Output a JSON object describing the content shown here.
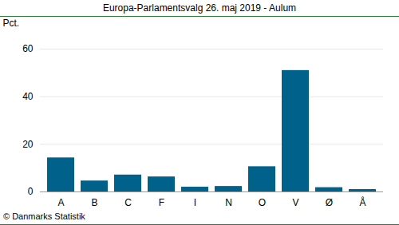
{
  "chart_data": {
    "type": "bar",
    "title": "Europa-Parlamentsvalg 26. maj 2019 - Aulum",
    "y_label": "Pct.",
    "caption": "© Danmarks Statistik",
    "categories": [
      "A",
      "B",
      "C",
      "F",
      "I",
      "N",
      "O",
      "V",
      "Ø",
      "Å"
    ],
    "values": [
      14.3,
      4.6,
      7.1,
      6.3,
      2.0,
      2.3,
      10.6,
      51.0,
      1.8,
      1.0
    ],
    "color": "#00628b",
    "ylim": [
      0,
      60
    ],
    "yticks": [
      0,
      20,
      40,
      60
    ],
    "grid": true
  }
}
